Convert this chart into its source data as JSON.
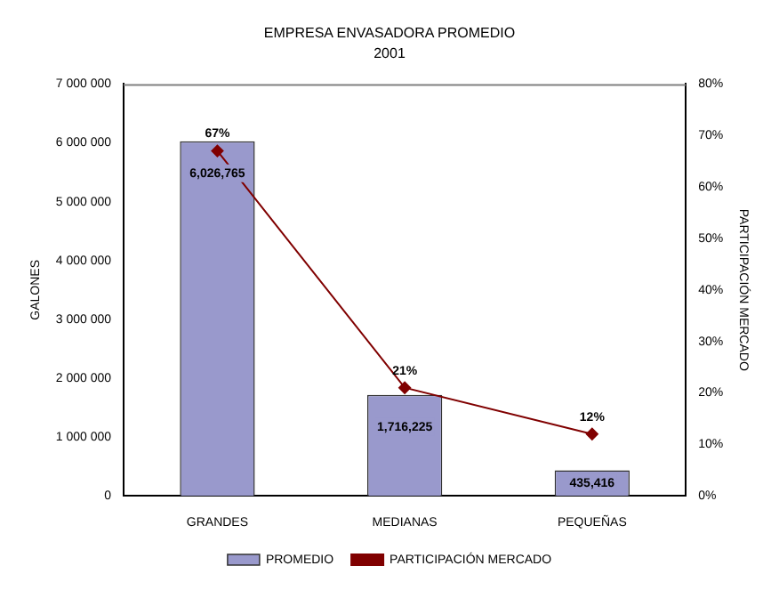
{
  "chart_data": {
    "type": "bar",
    "title": "EMPRESA ENVASADORA PROMEDIO",
    "subtitle": "2001",
    "ylabel": "GALONES",
    "y2label": "PARTICIPACIÓN MERCADO",
    "categories": [
      "GRANDES",
      "MEDIANAS",
      "PEQUEÑAS"
    ],
    "series": [
      {
        "name": "PROMEDIO",
        "color": "#9999cc",
        "values": [
          6026765,
          1716225,
          435416
        ],
        "value_labels": [
          "6,026,765",
          "1,716,225",
          "435,416"
        ]
      },
      {
        "name": "PARTICIPACIÓN MERCADO",
        "type": "line",
        "axis": "y2",
        "color": "#800000",
        "values": [
          67,
          21,
          12
        ],
        "value_labels": [
          "67%",
          "21%",
          "12%"
        ],
        "marker": "diamond"
      }
    ],
    "ylim": [
      0,
      7000000
    ],
    "yticks": [
      {
        "value": 0,
        "label": "0"
      },
      {
        "value": 1000000,
        "label": "1 000 000"
      },
      {
        "value": 2000000,
        "label": "2 000 000"
      },
      {
        "value": 3000000,
        "label": "3 000 000"
      },
      {
        "value": 4000000,
        "label": "4 000 000"
      },
      {
        "value": 5000000,
        "label": "5 000 000"
      },
      {
        "value": 6000000,
        "label": "6 000 000"
      },
      {
        "value": 7000000,
        "label": "7 000 000"
      }
    ],
    "y2lim": [
      0,
      80
    ],
    "y2ticks": [
      {
        "value": 0,
        "label": "0%"
      },
      {
        "value": 10,
        "label": "10%"
      },
      {
        "value": 20,
        "label": "20%"
      },
      {
        "value": 30,
        "label": "30%"
      },
      {
        "value": 40,
        "label": "40%"
      },
      {
        "value": 50,
        "label": "50%"
      },
      {
        "value": 60,
        "label": "60%"
      },
      {
        "value": 70,
        "label": "70%"
      },
      {
        "value": 80,
        "label": "80%"
      }
    ],
    "grid": false,
    "legend": "bottom"
  }
}
